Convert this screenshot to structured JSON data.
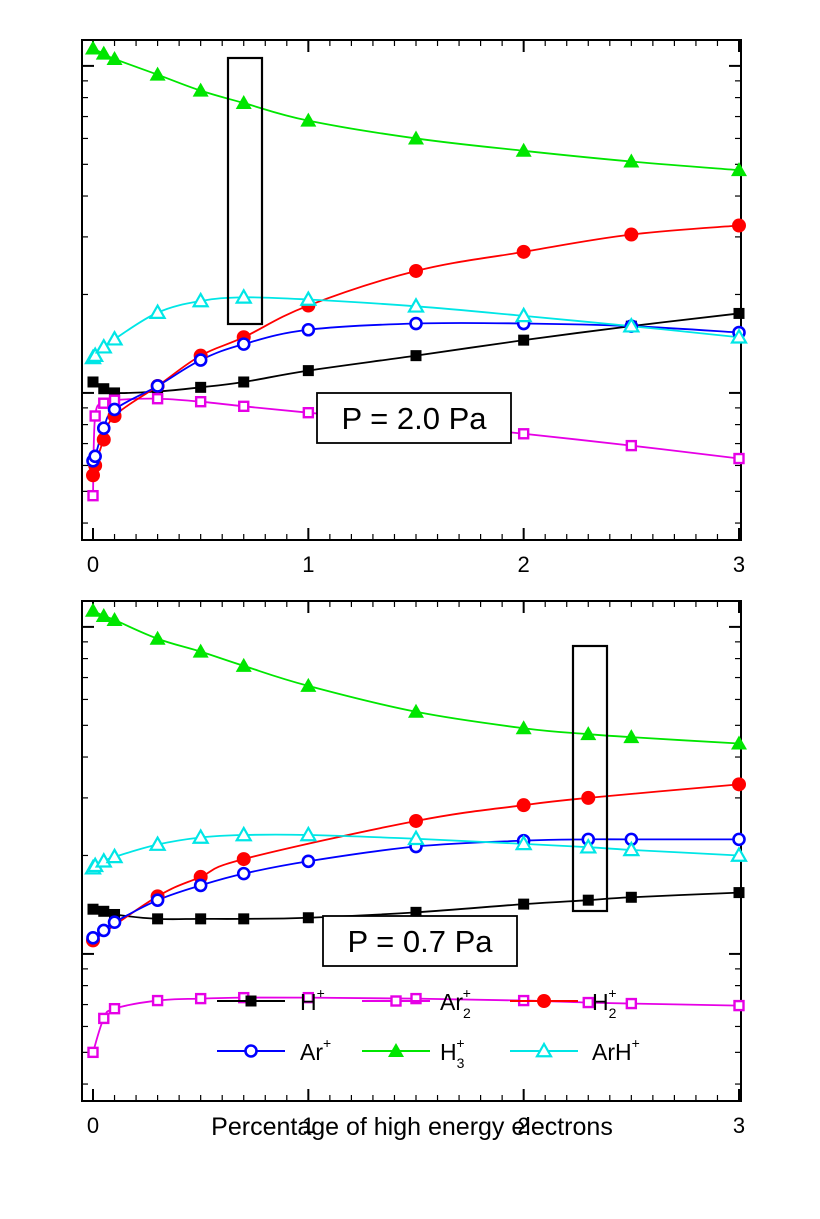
{
  "chart_data": [
    {
      "type": "line",
      "annotation": "P = 2.0 Pa",
      "xlim": [
        0,
        3
      ],
      "xticks": [
        "0",
        "1",
        "2",
        "3"
      ],
      "yscale": "log",
      "ylim": [
        0.0355,
        1.2
      ],
      "highlight_x": 0.7,
      "series": [
        {
          "name": "H",
          "charge": "+",
          "marker": "filled-square",
          "color": "#000000",
          "x": [
            0,
            0.05,
            0.1,
            0.3,
            0.5,
            0.7,
            1.0,
            1.5,
            2.0,
            2.5,
            3.0
          ],
          "y": [
            0.108,
            0.103,
            0.1,
            0.101,
            0.104,
            0.108,
            0.117,
            0.13,
            0.145,
            0.16,
            0.175
          ]
        },
        {
          "name": "Ar",
          "sub": "2",
          "charge": "+",
          "marker": "open-square",
          "color": "#e600e6",
          "x": [
            0,
            0.01,
            0.05,
            0.1,
            0.3,
            0.5,
            0.7,
            1.0,
            1.5,
            2.0,
            2.5,
            3.0
          ],
          "y": [
            0.0485,
            0.085,
            0.093,
            0.095,
            0.096,
            0.094,
            0.091,
            0.087,
            0.081,
            0.075,
            0.069,
            0.063
          ]
        },
        {
          "name": "H",
          "sub": "2",
          "charge": "+",
          "marker": "filled-circle",
          "color": "#ff0000",
          "x": [
            0,
            0.01,
            0.05,
            0.1,
            0.3,
            0.5,
            0.7,
            1.0,
            1.5,
            2.0,
            2.5,
            3.0
          ],
          "y": [
            0.056,
            0.06,
            0.072,
            0.085,
            0.105,
            0.13,
            0.148,
            0.185,
            0.236,
            0.27,
            0.305,
            0.325
          ]
        },
        {
          "name": "Ar",
          "charge": "+",
          "marker": "open-circle",
          "color": "#0000ff",
          "x": [
            0,
            0.01,
            0.05,
            0.1,
            0.3,
            0.5,
            0.7,
            1.0,
            1.5,
            2.0,
            2.5,
            3.0
          ],
          "y": [
            0.062,
            0.064,
            0.078,
            0.089,
            0.105,
            0.126,
            0.141,
            0.156,
            0.163,
            0.163,
            0.16,
            0.153
          ]
        },
        {
          "name": "H",
          "sub": "3",
          "charge": "+",
          "marker": "filled-triangle",
          "color": "#00e600",
          "x": [
            0,
            0.05,
            0.1,
            0.3,
            0.5,
            0.7,
            1.0,
            1.5,
            2.0,
            2.5,
            3.0
          ],
          "y": [
            1.13,
            1.09,
            1.05,
            0.94,
            0.84,
            0.77,
            0.68,
            0.6,
            0.55,
            0.51,
            0.48
          ]
        },
        {
          "name": "ArH",
          "charge": "+",
          "marker": "open-triangle",
          "color": "#00e6e6",
          "x": [
            0,
            0.01,
            0.05,
            0.1,
            0.3,
            0.5,
            0.7,
            1.0,
            1.5,
            2.0,
            2.5,
            3.0
          ],
          "y": [
            0.128,
            0.13,
            0.138,
            0.146,
            0.176,
            0.191,
            0.196,
            0.193,
            0.184,
            0.172,
            0.16,
            0.148
          ]
        }
      ]
    },
    {
      "type": "line",
      "annotation": "P = 0.7 Pa",
      "xlim": [
        0,
        3
      ],
      "xticks": [
        "0",
        "1",
        "2",
        "3"
      ],
      "xlabel": "Percentage of high energy electrons",
      "yscale": "log",
      "ylim": [
        0.0355,
        1.2
      ],
      "highlight_x": 2.3,
      "series": [
        {
          "name": "H",
          "charge": "+",
          "marker": "filled-square",
          "color": "#000000",
          "x": [
            0,
            0.05,
            0.1,
            0.3,
            0.5,
            0.7,
            1.0,
            1.5,
            2.0,
            2.3,
            2.5,
            3.0
          ],
          "y": [
            0.137,
            0.135,
            0.132,
            0.128,
            0.128,
            0.128,
            0.129,
            0.134,
            0.142,
            0.146,
            0.149,
            0.154
          ]
        },
        {
          "name": "Ar",
          "sub": "2",
          "charge": "+",
          "marker": "open-square",
          "color": "#e600e6",
          "x": [
            0,
            0.05,
            0.1,
            0.3,
            0.5,
            0.7,
            1.0,
            1.5,
            2.0,
            2.3,
            2.5,
            3.0
          ],
          "y": [
            0.05,
            0.0635,
            0.068,
            0.072,
            0.073,
            0.0735,
            0.0735,
            0.073,
            0.072,
            0.071,
            0.0705,
            0.0695
          ]
        },
        {
          "name": "H",
          "sub": "2",
          "charge": "+",
          "marker": "filled-circle",
          "color": "#ff0000",
          "x": [
            0,
            0.3,
            0.5,
            0.7,
            1.5,
            2.0,
            2.3,
            3.0
          ],
          "y": [
            0.11,
            0.15,
            0.172,
            0.195,
            0.255,
            0.285,
            0.3,
            0.33
          ]
        },
        {
          "name": "Ar",
          "charge": "+",
          "marker": "open-circle",
          "color": "#0000ff",
          "x": [
            0,
            0.05,
            0.1,
            0.3,
            0.5,
            0.7,
            1.0,
            1.5,
            2.0,
            2.3,
            2.5,
            3.0
          ],
          "y": [
            0.112,
            0.118,
            0.125,
            0.146,
            0.162,
            0.176,
            0.192,
            0.213,
            0.222,
            0.224,
            0.224,
            0.224
          ]
        },
        {
          "name": "H",
          "sub": "3",
          "charge": "+",
          "marker": "filled-triangle",
          "color": "#00e600",
          "x": [
            0,
            0.05,
            0.1,
            0.3,
            0.5,
            0.7,
            1.0,
            1.5,
            2.0,
            2.3,
            2.5,
            3.0
          ],
          "y": [
            1.12,
            1.08,
            1.05,
            0.92,
            0.84,
            0.76,
            0.66,
            0.55,
            0.49,
            0.47,
            0.46,
            0.44
          ]
        },
        {
          "name": "ArH",
          "charge": "+",
          "marker": "open-triangle",
          "color": "#00e6e6",
          "x": [
            0,
            0.01,
            0.05,
            0.1,
            0.3,
            0.5,
            0.7,
            1.0,
            1.5,
            2.0,
            2.3,
            2.5,
            3.0
          ],
          "y": [
            0.183,
            0.186,
            0.192,
            0.198,
            0.216,
            0.227,
            0.231,
            0.231,
            0.225,
            0.217,
            0.212,
            0.208,
            0.2
          ]
        }
      ]
    }
  ]
}
